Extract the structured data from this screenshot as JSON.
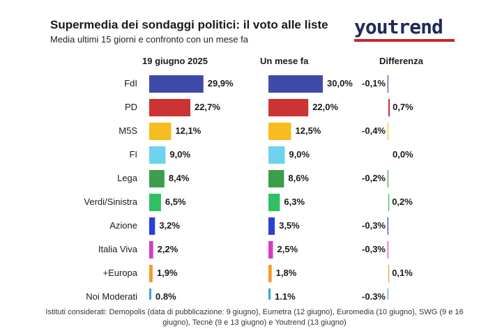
{
  "header": {
    "title": "Supermedia dei sondaggi politici: il voto alle liste",
    "subtitle": "Media ultimi 15 giorni e confronto con un mese fa",
    "logo_text": "youtrend"
  },
  "columns": {
    "current": "19 giugno 2025",
    "previous": "Un mese fa",
    "diff": "Differenza"
  },
  "footer": {
    "note": "Istituti considerati: Demopolis (data di pubblicazione: 9 giugno), Eumetra (12 giugno), Euromedia (10 giugno), SWG (9 e 16 giugno), Tecnè (9 e 13 giugno) e Youtrend (13 giugno)"
  },
  "chart_data": {
    "type": "bar",
    "categories": [
      "FdI",
      "PD",
      "M5S",
      "FI",
      "Lega",
      "Verdi/Sinistra",
      "Azione",
      "Italia Viva",
      "+Europa",
      "Noi Moderati"
    ],
    "colors": [
      "#3f4aa8",
      "#cc3333",
      "#f5bd1f",
      "#6dd3ee",
      "#3c9e4a",
      "#2fc065",
      "#2a3fd6",
      "#d63cc0",
      "#f59a2a",
      "#3aa3d6"
    ],
    "series": [
      {
        "name": "19 giugno 2025",
        "values": [
          29.9,
          22.7,
          12.1,
          9.0,
          8.4,
          6.5,
          3.2,
          2.2,
          1.9,
          0.8
        ],
        "labels": [
          "29,9%",
          "22,7%",
          "12,1%",
          "9,0%",
          "8,4%",
          "6,5%",
          "3,2%",
          "2,2%",
          "1,9%",
          "0,8%"
        ]
      },
      {
        "name": "Un mese fa",
        "values": [
          30.0,
          22.0,
          12.5,
          9.0,
          8.6,
          6.3,
          3.5,
          2.5,
          1.8,
          1.1
        ],
        "labels": [
          "30,0%",
          "22,0%",
          "12,5%",
          "9,0%",
          "8,6%",
          "6,3%",
          "3,5%",
          "2,5%",
          "1,8%",
          "1,1%"
        ]
      },
      {
        "name": "Differenza",
        "values": [
          -0.1,
          0.7,
          -0.4,
          0.0,
          -0.2,
          0.2,
          -0.3,
          -0.3,
          0.1,
          -0.3
        ],
        "labels": [
          "-0,1%",
          "0,7%",
          "-0,4%",
          "0,0%",
          "-0,2%",
          "0,2%",
          "-0,3%",
          "-0,3%",
          "0,1%",
          "-0,3%"
        ]
      }
    ]
  }
}
